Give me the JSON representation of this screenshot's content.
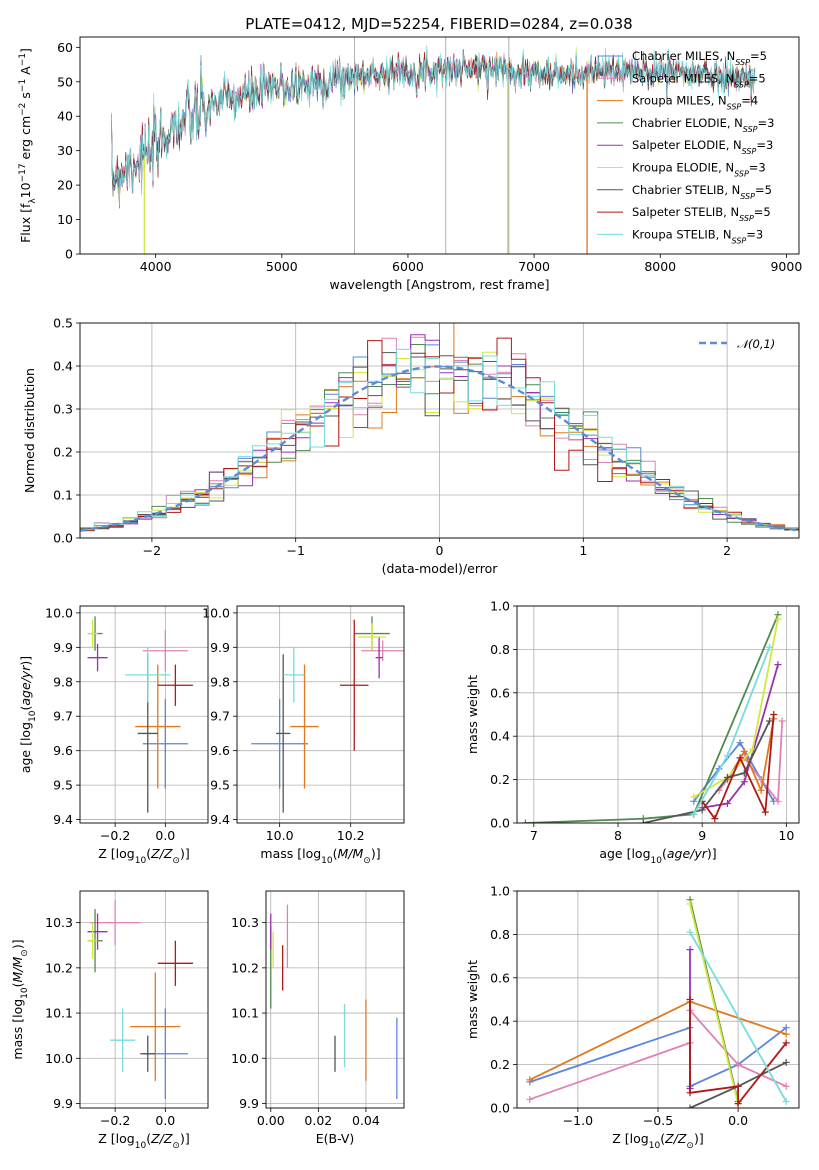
{
  "title": "PLATE=0412, MJD=52254, FIBERID=0284, z=0.038",
  "colors": {
    "chabrier_miles": "#5b84dc",
    "salpeter_miles": "#e082b4",
    "kroupa_miles": "#e07820",
    "chabrier_elodie": "#4f8a50",
    "salpeter_elodie": "#9a30b2",
    "kroupa_elodie": "#d4e640",
    "chabrier_stelib": "#555555",
    "salpeter_stelib": "#b01818",
    "kroupa_stelib": "#78dcdc",
    "gauss": "#5b8ed8"
  },
  "legend_spectrum": [
    {
      "key": "chabrier_miles",
      "pre": "Chabrier MILES, N",
      "sub": "SSP",
      "post": "=5"
    },
    {
      "key": "salpeter_miles",
      "pre": "Salpeter MILES, N",
      "sub": "SSP",
      "post": "=5"
    },
    {
      "key": "kroupa_miles",
      "pre": "Kroupa MILES, N",
      "sub": "SSP",
      "post": "=4"
    },
    {
      "key": "chabrier_elodie",
      "pre": "Chabrier ELODIE, N",
      "sub": "SSP",
      "post": "=3"
    },
    {
      "key": "salpeter_elodie",
      "pre": "Salpeter ELODIE, N",
      "sub": "SSP",
      "post": "=3"
    },
    {
      "key": "kroupa_elodie",
      "pre": "Kroupa ELODIE, N",
      "sub": "SSP",
      "post": "=3"
    },
    {
      "key": "chabrier_stelib",
      "pre": "Chabrier STELIB, N",
      "sub": "SSP",
      "post": "=5"
    },
    {
      "key": "salpeter_stelib",
      "pre": "Salpeter STELIB, N",
      "sub": "SSP",
      "post": "=5"
    },
    {
      "key": "kroupa_stelib",
      "pre": "Kroupa STELIB, N",
      "sub": "SSP",
      "post": "=3"
    }
  ],
  "chart_data": [
    {
      "type": "line",
      "id": "spectrum",
      "xlabel": "wavelength [Angstrom, rest frame]",
      "ylabel": "Flux [fλ10⁻¹⁷ erg cm⁻² s⁻¹ A⁻¹]",
      "xlim": [
        3400,
        9100
      ],
      "ylim": [
        0,
        63
      ],
      "xticks": [
        4000,
        5000,
        6000,
        7000,
        8000,
        9000
      ],
      "yticks": [
        0,
        10,
        20,
        30,
        40,
        50,
        60
      ],
      "continuum": [
        [
          3650,
          22
        ],
        [
          3720,
          24
        ],
        [
          3800,
          26
        ],
        [
          3880,
          28
        ],
        [
          3950,
          28
        ],
        [
          4000,
          30
        ],
        [
          4100,
          36
        ],
        [
          4200,
          38
        ],
        [
          4300,
          40
        ],
        [
          4400,
          42
        ],
        [
          4500,
          44
        ],
        [
          4700,
          46
        ],
        [
          4900,
          48
        ],
        [
          5100,
          49
        ],
        [
          5300,
          50
        ],
        [
          5500,
          51
        ],
        [
          5700,
          52
        ],
        [
          5900,
          53
        ],
        [
          6100,
          53
        ],
        [
          6300,
          53.5
        ],
        [
          6500,
          54
        ],
        [
          6700,
          54
        ],
        [
          6900,
          53
        ],
        [
          7100,
          52
        ],
        [
          7300,
          52
        ],
        [
          7500,
          53
        ],
        [
          7800,
          53
        ],
        [
          8100,
          53
        ],
        [
          8400,
          52
        ],
        [
          8700,
          51
        ]
      ],
      "sky_lines": [
        5577,
        6300,
        6800
      ],
      "dropouts": [
        {
          "x": 3910,
          "key": "kroupa_elodie"
        },
        {
          "x": 6790,
          "key": "kroupa_elodie"
        },
        {
          "x": 7420,
          "key": "kroupa_miles"
        }
      ]
    },
    {
      "type": "bar",
      "id": "residual_histogram",
      "xlabel": "(data-model)/error",
      "ylabel": "Normed distribution",
      "xlim": [
        -2.5,
        2.5
      ],
      "ylim": [
        0,
        0.5
      ],
      "xticks": [
        -2,
        -1,
        0,
        1,
        2
      ],
      "yticks": [
        0,
        0.1,
        0.2,
        0.3,
        0.4,
        0.5
      ],
      "bin_width": 0.1,
      "legend": "𝒩(0,1)"
    },
    {
      "type": "scatter",
      "id": "age_vs_metallicity",
      "xlabel": "Z [log10(Z/Z⊙)]",
      "ylabel": "age [log10(age/yr)]",
      "xlim": [
        -0.34,
        0.17
      ],
      "ylim": [
        9.39,
        10.02
      ],
      "xticks": [
        -0.2,
        0.0
      ],
      "yticks": [
        9.4,
        9.5,
        9.6,
        9.7,
        9.8,
        9.9,
        10.0
      ],
      "series": [
        {
          "key": "chabrier_miles",
          "x": 0.0,
          "xerr": 0.09,
          "y": 9.62,
          "yerr": 0.13
        },
        {
          "key": "salpeter_miles",
          "x": 0.0,
          "xerr": 0.09,
          "y": 9.89,
          "yerr": 0.06
        },
        {
          "key": "kroupa_miles",
          "x": -0.03,
          "xerr": 0.09,
          "y": 9.67,
          "yerr": 0.18
        },
        {
          "key": "chabrier_elodie",
          "x": -0.28,
          "xerr": 0.03,
          "y": 9.94,
          "yerr": 0.05
        },
        {
          "key": "salpeter_elodie",
          "x": -0.27,
          "xerr": 0.04,
          "y": 9.87,
          "yerr": 0.04
        },
        {
          "key": "kroupa_elodie",
          "x": -0.29,
          "xerr": 0.02,
          "y": 9.94,
          "yerr": 0.04
        },
        {
          "key": "chabrier_stelib",
          "x": -0.07,
          "xerr": 0.04,
          "y": 9.65,
          "yerr": 0.23
        },
        {
          "key": "salpeter_stelib",
          "x": 0.04,
          "xerr": 0.07,
          "y": 9.79,
          "yerr": 0.06
        },
        {
          "key": "kroupa_stelib",
          "x": -0.07,
          "xerr": 0.09,
          "y": 9.82,
          "yerr": 0.08
        }
      ]
    },
    {
      "type": "scatter",
      "id": "age_vs_mass",
      "xlabel": "mass [log10(M/M⊙)]",
      "ylabel": "",
      "xlim": [
        9.88,
        10.35
      ],
      "ylim": [
        9.39,
        10.02
      ],
      "xticks": [
        10.0,
        10.2
      ],
      "yticks": [
        9.4,
        9.5,
        9.6,
        9.7,
        9.8,
        9.9,
        10.0
      ],
      "series": [
        {
          "key": "chabrier_miles",
          "x": 10.0,
          "xerr": 0.08,
          "y": 9.62,
          "yerr": 0.13
        },
        {
          "key": "salpeter_miles",
          "x": 10.29,
          "xerr": 0.06,
          "y": 9.89,
          "yerr": 0.03
        },
        {
          "key": "kroupa_miles",
          "x": 10.07,
          "xerr": 0.04,
          "y": 9.67,
          "yerr": 0.18
        },
        {
          "key": "chabrier_elodie",
          "x": 10.26,
          "xerr": 0.05,
          "y": 9.94,
          "yerr": 0.05
        },
        {
          "key": "salpeter_elodie",
          "x": 10.28,
          "xerr": 0.01,
          "y": 9.87,
          "yerr": 0.06
        },
        {
          "key": "kroupa_elodie",
          "x": 10.26,
          "xerr": 0.04,
          "y": 9.93,
          "yerr": 0.04
        },
        {
          "key": "chabrier_stelib",
          "x": 10.01,
          "xerr": 0.02,
          "y": 9.65,
          "yerr": 0.23
        },
        {
          "key": "salpeter_stelib",
          "x": 10.21,
          "xerr": 0.04,
          "y": 9.79,
          "yerr": 0.19
        },
        {
          "key": "kroupa_stelib",
          "x": 10.04,
          "xerr": 0.03,
          "y": 9.82,
          "yerr": 0.08
        }
      ]
    },
    {
      "type": "line",
      "id": "mass_weight_vs_age",
      "xlabel": "age [log10(age/yr)]",
      "ylabel": "mass weight",
      "xlim": [
        6.8,
        10.15
      ],
      "ylim": [
        0,
        1
      ],
      "xticks": [
        7,
        8,
        9,
        10
      ],
      "yticks": [
        0,
        0.2,
        0.4,
        0.6,
        0.8,
        1.0
      ],
      "series": [
        {
          "key": "chabrier_miles",
          "points": [
            [
              8.9,
              0.1
            ],
            [
              9.2,
              0.25
            ],
            [
              9.45,
              0.37
            ],
            [
              9.7,
              0.2
            ],
            [
              9.85,
              0.1
            ]
          ]
        },
        {
          "key": "salpeter_miles",
          "points": [
            [
              9.2,
              0.15
            ],
            [
              9.5,
              0.3
            ],
            [
              9.7,
              0.2
            ],
            [
              9.9,
              0.1
            ],
            [
              9.95,
              0.47
            ]
          ]
        },
        {
          "key": "kroupa_miles",
          "points": [
            [
              9.3,
              0.2
            ],
            [
              9.5,
              0.33
            ],
            [
              9.7,
              0.15
            ],
            [
              9.85,
              0.48
            ]
          ]
        },
        {
          "key": "chabrier_elodie",
          "points": [
            [
              6.9,
              0.0
            ],
            [
              8.3,
              0.02
            ],
            [
              8.9,
              0.04
            ],
            [
              9.9,
              0.96
            ]
          ]
        },
        {
          "key": "salpeter_elodie",
          "points": [
            [
              9.0,
              0.07
            ],
            [
              9.3,
              0.09
            ],
            [
              9.5,
              0.19
            ],
            [
              9.9,
              0.73
            ]
          ]
        },
        {
          "key": "kroupa_elodie",
          "points": [
            [
              8.9,
              0.12
            ],
            [
              9.3,
              0.21
            ],
            [
              9.6,
              0.34
            ],
            [
              9.9,
              0.94
            ]
          ]
        },
        {
          "key": "chabrier_stelib",
          "points": [
            [
              8.3,
              0.0
            ],
            [
              9.0,
              0.06
            ],
            [
              9.3,
              0.21
            ],
            [
              9.5,
              0.23
            ],
            [
              9.8,
              0.47
            ]
          ]
        },
        {
          "key": "salpeter_stelib",
          "points": [
            [
              9.0,
              0.1
            ],
            [
              9.15,
              0.02
            ],
            [
              9.45,
              0.3
            ],
            [
              9.75,
              0.05
            ],
            [
              9.85,
              0.5
            ]
          ]
        },
        {
          "key": "kroupa_stelib",
          "points": [
            [
              8.9,
              0.04
            ],
            [
              9.3,
              0.31
            ],
            [
              9.8,
              0.81
            ]
          ]
        }
      ]
    },
    {
      "type": "scatter",
      "id": "mass_vs_metallicity",
      "xlabel": "Z [log10(Z/Z⊙)]",
      "ylabel": "mass [log10(M/M⊙)]",
      "xlim": [
        -0.34,
        0.17
      ],
      "ylim": [
        9.89,
        10.37
      ],
      "xticks": [
        -0.2,
        0.0
      ],
      "yticks": [
        9.9,
        10.0,
        10.1,
        10.2,
        10.3
      ],
      "series": [
        {
          "key": "chabrier_miles",
          "x": 0.0,
          "xerr": 0.09,
          "y": 10.01,
          "yerr": 0.1
        },
        {
          "key": "salpeter_miles",
          "x": -0.2,
          "xerr": 0.1,
          "y": 10.3,
          "yerr": 0.05
        },
        {
          "key": "kroupa_miles",
          "x": -0.04,
          "xerr": 0.1,
          "y": 10.07,
          "yerr": 0.12
        },
        {
          "key": "chabrier_elodie",
          "x": -0.28,
          "xerr": 0.03,
          "y": 10.26,
          "yerr": 0.07
        },
        {
          "key": "salpeter_elodie",
          "x": -0.27,
          "xerr": 0.04,
          "y": 10.28,
          "yerr": 0.04
        },
        {
          "key": "kroupa_elodie",
          "x": -0.29,
          "xerr": 0.02,
          "y": 10.26,
          "yerr": 0.04
        },
        {
          "key": "chabrier_stelib",
          "x": -0.07,
          "xerr": 0.03,
          "y": 10.01,
          "yerr": 0.04
        },
        {
          "key": "salpeter_stelib",
          "x": 0.04,
          "xerr": 0.07,
          "y": 10.21,
          "yerr": 0.05
        },
        {
          "key": "kroupa_stelib",
          "x": -0.17,
          "xerr": 0.05,
          "y": 10.04,
          "yerr": 0.07
        }
      ]
    },
    {
      "type": "scatter",
      "id": "mass_vs_extinction",
      "xlabel": "E(B-V)",
      "ylabel": "",
      "xlim": [
        -0.002,
        0.056
      ],
      "ylim": [
        9.89,
        10.37
      ],
      "xticks": [
        0.0,
        0.02,
        0.04
      ],
      "yticks": [
        9.9,
        10.0,
        10.1,
        10.2,
        10.3
      ],
      "series": [
        {
          "key": "chabrier_miles",
          "x": 0.053,
          "y": 10.0,
          "yerr": 0.09
        },
        {
          "key": "salpeter_miles",
          "x": 0.007,
          "y": 10.27,
          "yerr": 0.07
        },
        {
          "key": "kroupa_miles",
          "x": 0.04,
          "y": 10.04,
          "yerr": 0.09
        },
        {
          "key": "chabrier_elodie",
          "x": 0.0,
          "y": 10.2,
          "yerr": 0.09
        },
        {
          "key": "salpeter_elodie",
          "x": 0.0,
          "y": 10.28,
          "yerr": 0.04
        },
        {
          "key": "kroupa_elodie",
          "x": 0.001,
          "y": 10.24,
          "yerr": 0.04
        },
        {
          "key": "chabrier_stelib",
          "x": 0.027,
          "y": 10.01,
          "yerr": 0.04
        },
        {
          "key": "salpeter_stelib",
          "x": 0.005,
          "y": 10.2,
          "yerr": 0.05
        },
        {
          "key": "kroupa_stelib",
          "x": 0.031,
          "y": 10.05,
          "yerr": 0.07
        }
      ]
    },
    {
      "type": "line",
      "id": "mass_weight_vs_metallicity",
      "xlabel": "Z [log10(Z/Z⊙)]",
      "ylabel": "mass weight",
      "xlim": [
        -1.38,
        0.38
      ],
      "ylim": [
        0,
        1
      ],
      "xticks": [
        -1.0,
        -0.5,
        0.0
      ],
      "yticks": [
        0,
        0.2,
        0.4,
        0.6,
        0.8,
        1.0
      ],
      "series": [
        {
          "key": "chabrier_miles",
          "points": [
            [
              -1.3,
              0.12
            ],
            [
              -0.3,
              0.37
            ],
            [
              -0.3,
              0.1
            ],
            [
              0.0,
              0.2
            ],
            [
              0.3,
              0.37
            ]
          ]
        },
        {
          "key": "salpeter_miles",
          "points": [
            [
              -1.3,
              0.04
            ],
            [
              -0.3,
              0.3
            ],
            [
              -0.3,
              0.45
            ],
            [
              0.0,
              0.2
            ],
            [
              0.3,
              0.1
            ]
          ]
        },
        {
          "key": "kroupa_miles",
          "points": [
            [
              -1.3,
              0.13
            ],
            [
              -0.3,
              0.49
            ],
            [
              0.3,
              0.34
            ]
          ]
        },
        {
          "key": "chabrier_elodie",
          "points": [
            [
              -0.3,
              0.96
            ],
            [
              0.0,
              0.03
            ]
          ]
        },
        {
          "key": "salpeter_elodie",
          "points": [
            [
              -0.3,
              0.73
            ],
            [
              -0.3,
              0.09
            ]
          ]
        },
        {
          "key": "kroupa_elodie",
          "points": [
            [
              -0.3,
              0.94
            ],
            [
              0.0,
              0.02
            ]
          ]
        },
        {
          "key": "chabrier_stelib",
          "points": [
            [
              -0.3,
              0.0
            ],
            [
              0.0,
              0.1
            ],
            [
              0.3,
              0.21
            ]
          ]
        },
        {
          "key": "salpeter_stelib",
          "points": [
            [
              -0.3,
              0.5
            ],
            [
              -0.3,
              0.07
            ],
            [
              0.0,
              0.1
            ],
            [
              0.0,
              0.02
            ],
            [
              0.3,
              0.3
            ]
          ]
        },
        {
          "key": "kroupa_stelib",
          "points": [
            [
              -0.3,
              0.81
            ],
            [
              0.3,
              0.03
            ]
          ]
        }
      ]
    }
  ]
}
